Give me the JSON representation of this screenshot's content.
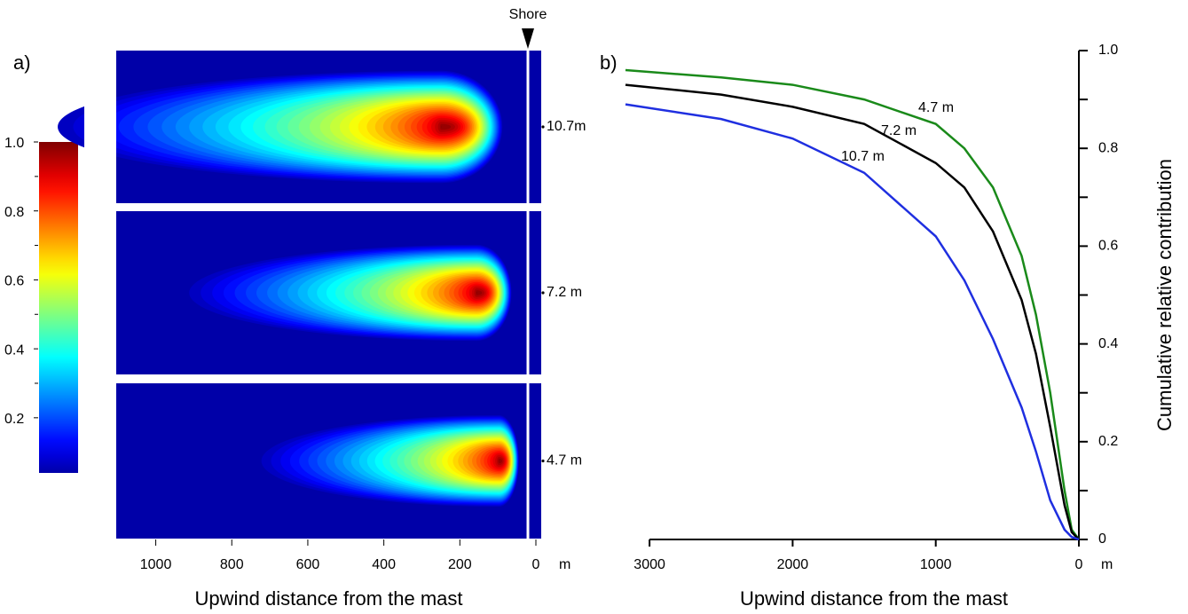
{
  "chart_data": [
    {
      "type": "heatmap",
      "label": "a)",
      "x_label": "Upwind distance from the mast",
      "x_unit": "m",
      "annotation": "Shore",
      "shore_x": 21,
      "xlim": [
        1104,
        -7
      ],
      "xticks": [
        1000,
        800,
        600,
        400,
        200,
        0
      ],
      "colorbar": {
        "clim": [
          0.04,
          1
        ],
        "ticks": [
          {
            "value": 1,
            "label": "1.0"
          },
          0.8,
          0.6,
          0.4,
          0.2
        ]
      },
      "series": [
        {
          "name": "10.7m",
          "peak_x": 249,
          "front_x": 86,
          "tail_x": 1300
        },
        {
          "name": "7.2 m",
          "peak_x": 156,
          "front_x": 63,
          "tail_x": 944
        },
        {
          "name": "4.7 m",
          "peak_x": 97,
          "front_x": 44,
          "tail_x": 748
        }
      ]
    },
    {
      "type": "line",
      "label": "b)",
      "x_label": "Upwind distance from the mast",
      "x_unit": "m",
      "y_label": "Cumulative relative contribution",
      "xlim": [
        3168,
        0
      ],
      "ylim": [
        0,
        1
      ],
      "xticks": [
        3000,
        2000,
        1000,
        0
      ],
      "yticks": [
        0,
        0.2,
        0.4,
        0.6,
        0.8,
        {
          "value": 1,
          "label": "1.0"
        }
      ],
      "x": [
        3168,
        2500,
        2000,
        1500,
        1000,
        800,
        600,
        400,
        300,
        200,
        100,
        50,
        0
      ],
      "series": [
        {
          "name": "4.7 m",
          "color": "#1a8a1a",
          "values": [
            0.96,
            0.945,
            0.93,
            0.9,
            0.85,
            0.8,
            0.72,
            0.58,
            0.46,
            0.3,
            0.1,
            0.02,
            0
          ]
        },
        {
          "name": "7.2 m",
          "color": "#000000",
          "values": [
            0.93,
            0.91,
            0.885,
            0.85,
            0.77,
            0.72,
            0.63,
            0.49,
            0.38,
            0.23,
            0.07,
            0.015,
            0
          ]
        },
        {
          "name": "10.7 m",
          "color": "#1f2fe0",
          "values": [
            0.89,
            0.86,
            0.82,
            0.75,
            0.62,
            0.53,
            0.41,
            0.27,
            0.18,
            0.08,
            0.02,
            0.005,
            0
          ]
        }
      ]
    }
  ]
}
